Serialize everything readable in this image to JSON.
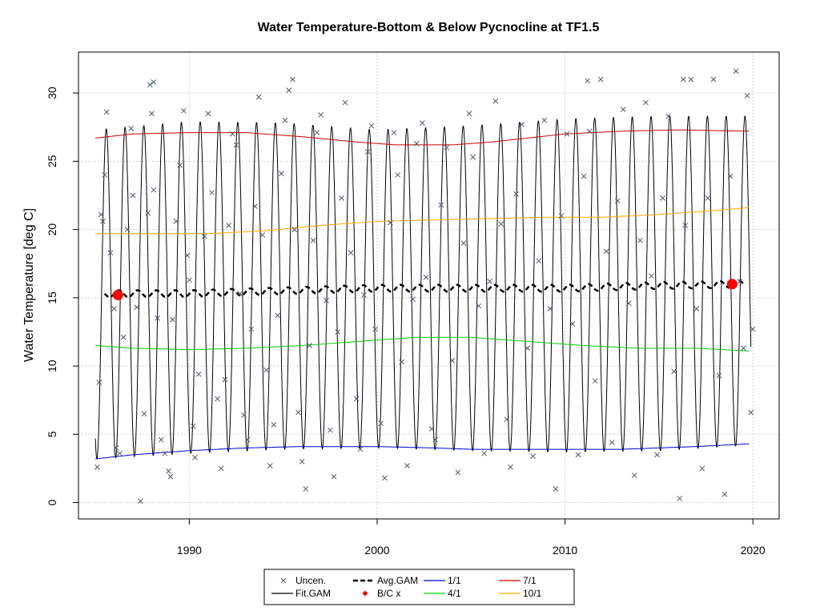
{
  "chart_data": {
    "type": "line",
    "title": "Water Temperature-Bottom & Below Pycnocline at TF1.5",
    "xlabel": "",
    "ylabel": "Water Temperature [deg C]",
    "xlim": [
      1984.1,
      2021.4
    ],
    "ylim": [
      -1.2,
      33.0
    ],
    "x_ticks": [
      1990,
      2000,
      2010,
      2020
    ],
    "x_tick_labels": [
      "1990",
      "2000",
      "2010",
      "2020"
    ],
    "y_ticks": [
      0,
      5,
      10,
      15,
      20,
      25,
      30
    ],
    "y_tick_labels": [
      "0",
      "5",
      "10",
      "15",
      "20",
      "25",
      "30"
    ],
    "grid": true,
    "legend_position": "bottom",
    "legend": [
      {
        "label": "Uncen.",
        "kind": "cross",
        "color": "#4d5a6e"
      },
      {
        "label": "Fit.GAM",
        "kind": "line",
        "color": "#000000"
      },
      {
        "label": "Avg.GAM",
        "kind": "dash",
        "color": "#000000"
      },
      {
        "label": "B/C x",
        "kind": "diamond",
        "color": "#ff0000"
      },
      {
        "label": "1/1",
        "kind": "line",
        "color": "#0000cc"
      },
      {
        "label": "4/1",
        "kind": "line",
        "color": "#00cc00"
      },
      {
        "label": "7/1",
        "kind": "line",
        "color": "#cc0000"
      },
      {
        "label": "10/1",
        "kind": "line",
        "color": "#ffa500"
      }
    ],
    "series": [
      {
        "name": "1/1",
        "color": "#0000cc",
        "x": [
          1985,
          1987,
          1990,
          1993,
          1996,
          2000,
          2003,
          2005,
          2008,
          2010,
          2013,
          2015,
          2017,
          2019.8
        ],
        "y": [
          3.2,
          3.5,
          3.8,
          4.0,
          4.1,
          4.1,
          4.0,
          3.9,
          3.9,
          3.9,
          3.9,
          4.0,
          4.1,
          4.3
        ]
      },
      {
        "name": "4/1",
        "color": "#00cc00",
        "x": [
          1985,
          1987,
          1990,
          1993,
          1996,
          1999,
          2002,
          2005,
          2008,
          2011,
          2014,
          2017,
          2019.8
        ],
        "y": [
          11.5,
          11.3,
          11.2,
          11.3,
          11.5,
          11.8,
          12.1,
          12.1,
          11.8,
          11.5,
          11.3,
          11.3,
          11.1
        ]
      },
      {
        "name": "7/1",
        "color": "#cc0000",
        "x": [
          1985,
          1987,
          1990,
          1993,
          1996,
          1999,
          2001,
          2004,
          2006,
          2008,
          2010,
          2013,
          2016,
          2019.8
        ],
        "y": [
          26.7,
          27.0,
          27.1,
          27.1,
          26.8,
          26.4,
          26.2,
          26.2,
          26.4,
          26.7,
          27.0,
          27.2,
          27.3,
          27.2
        ]
      },
      {
        "name": "10/1",
        "color": "#ffa500",
        "x": [
          1985,
          1988,
          1991,
          1994,
          1997,
          2000,
          2003,
          2006,
          2009,
          2012,
          2015,
          2018,
          2019.8
        ],
        "y": [
          19.7,
          19.7,
          19.7,
          19.9,
          20.3,
          20.6,
          20.7,
          20.8,
          20.9,
          20.9,
          21.1,
          21.4,
          21.6
        ]
      },
      {
        "name": "Avg.GAM",
        "color": "#000000",
        "x": [
          1985.5,
          1990,
          1995,
          2000,
          2005,
          2010,
          2015,
          2019.5
        ],
        "y": [
          15.3,
          15.3,
          15.5,
          15.7,
          15.7,
          15.7,
          15.9,
          16.0
        ],
        "wiggle": 0.25
      },
      {
        "name": "Fit.GAM",
        "color": "#000000",
        "x_start": 1985.0,
        "x_end": 2019.9,
        "phase_peak": 0.58,
        "x_env": [
          1985,
          1990,
          1995,
          2000,
          2005,
          2010,
          2015,
          2019.9
        ],
        "min_env": [
          3.2,
          3.6,
          3.9,
          4.0,
          3.8,
          3.7,
          3.8,
          4.2
        ],
        "max_env": [
          27.3,
          27.9,
          27.8,
          27.3,
          27.6,
          28.1,
          28.3,
          28.3
        ]
      }
    ],
    "bc_points": [
      {
        "x": 1986.2,
        "y": 15.2
      },
      {
        "x": 2018.9,
        "y": 16.0
      }
    ],
    "uncensored_points": [
      [
        1985.1,
        2.6
      ],
      [
        1985.2,
        8.8
      ],
      [
        1985.3,
        21.1
      ],
      [
        1985.4,
        20.6
      ],
      [
        1985.5,
        24.0
      ],
      [
        1985.6,
        28.6
      ],
      [
        1985.8,
        18.3
      ],
      [
        1986.0,
        14.2
      ],
      [
        1986.1,
        4.0
      ],
      [
        1986.3,
        3.6
      ],
      [
        1986.5,
        12.1
      ],
      [
        1986.7,
        20.0
      ],
      [
        1986.9,
        27.4
      ],
      [
        1987.0,
        22.5
      ],
      [
        1987.2,
        14.3
      ],
      [
        1987.4,
        0.1
      ],
      [
        1987.6,
        6.5
      ],
      [
        1987.8,
        21.2
      ],
      [
        1987.9,
        30.6
      ],
      [
        1988.0,
        28.5
      ],
      [
        1988.1,
        22.9
      ],
      [
        1988.3,
        13.5
      ],
      [
        1988.5,
        4.6
      ],
      [
        1988.7,
        3.6
      ],
      [
        1988.9,
        2.3
      ],
      [
        1989.0,
        1.9
      ],
      [
        1989.1,
        13.4
      ],
      [
        1989.3,
        20.6
      ],
      [
        1989.5,
        24.7
      ],
      [
        1989.7,
        28.7
      ],
      [
        1989.9,
        18.1
      ],
      [
        1990.0,
        16.3
      ],
      [
        1990.2,
        5.6
      ],
      [
        1990.3,
        3.3
      ],
      [
        1990.5,
        9.4
      ],
      [
        1990.8,
        19.5
      ],
      [
        1991.0,
        28.5
      ],
      [
        1991.2,
        22.7
      ],
      [
        1991.5,
        7.6
      ],
      [
        1991.7,
        2.5
      ],
      [
        1991.9,
        9.0
      ],
      [
        1992.1,
        20.3
      ],
      [
        1992.3,
        27.0
      ],
      [
        1992.5,
        26.2
      ],
      [
        1992.7,
        15.3
      ],
      [
        1992.9,
        6.4
      ],
      [
        1993.1,
        4.6
      ],
      [
        1993.3,
        12.7
      ],
      [
        1993.5,
        21.7
      ],
      [
        1993.7,
        29.7
      ],
      [
        1993.9,
        19.6
      ],
      [
        1994.1,
        9.7
      ],
      [
        1994.3,
        2.7
      ],
      [
        1994.5,
        5.7
      ],
      [
        1994.7,
        13.7
      ],
      [
        1994.9,
        24.1
      ],
      [
        1995.1,
        28.0
      ],
      [
        1995.3,
        30.2
      ],
      [
        1995.6,
        20.0
      ],
      [
        1995.8,
        6.6
      ],
      [
        1996.0,
        3.0
      ],
      [
        1996.2,
        1.0
      ],
      [
        1996.4,
        11.5
      ],
      [
        1996.6,
        19.2
      ],
      [
        1996.8,
        27.1
      ],
      [
        1997.0,
        28.4
      ],
      [
        1997.3,
        14.8
      ],
      [
        1997.5,
        5.3
      ],
      [
        1997.7,
        1.9
      ],
      [
        1997.9,
        12.5
      ],
      [
        1998.1,
        22.3
      ],
      [
        1998.3,
        29.3
      ],
      [
        1998.6,
        18.3
      ],
      [
        1998.9,
        7.6
      ],
      [
        1999.1,
        3.9
      ],
      [
        1999.3,
        15.2
      ],
      [
        1999.5,
        25.7
      ],
      [
        1999.7,
        27.6
      ],
      [
        1999.9,
        12.7
      ],
      [
        2000.2,
        5.8
      ],
      [
        2000.4,
        1.8
      ],
      [
        2000.7,
        20.5
      ],
      [
        2000.9,
        27.1
      ],
      [
        2001.1,
        24.0
      ],
      [
        2001.3,
        10.3
      ],
      [
        2001.6,
        2.7
      ],
      [
        2001.9,
        14.9
      ],
      [
        2002.1,
        26.3
      ],
      [
        2002.4,
        27.8
      ],
      [
        2002.6,
        16.5
      ],
      [
        2002.9,
        5.4
      ],
      [
        2003.1,
        4.6
      ],
      [
        2003.4,
        21.8
      ],
      [
        2003.7,
        26.0
      ],
      [
        2004.0,
        10.4
      ],
      [
        2004.3,
        2.2
      ],
      [
        2004.6,
        19.0
      ],
      [
        2004.9,
        28.5
      ],
      [
        2005.1,
        25.3
      ],
      [
        2005.4,
        14.4
      ],
      [
        2005.7,
        3.6
      ],
      [
        2006.0,
        16.2
      ],
      [
        2006.3,
        29.4
      ],
      [
        2006.6,
        20.4
      ],
      [
        2006.9,
        6.1
      ],
      [
        2007.1,
        2.6
      ],
      [
        2007.4,
        22.6
      ],
      [
        2007.7,
        27.7
      ],
      [
        2008.0,
        11.3
      ],
      [
        2008.3,
        3.4
      ],
      [
        2008.6,
        17.7
      ],
      [
        2008.9,
        28.0
      ],
      [
        2009.2,
        14.2
      ],
      [
        2009.5,
        1.0
      ],
      [
        2009.8,
        21.0
      ],
      [
        2010.1,
        27.0
      ],
      [
        2010.4,
        13.1
      ],
      [
        2010.7,
        3.5
      ],
      [
        2011.0,
        23.9
      ],
      [
        2011.3,
        27.2
      ],
      [
        2011.6,
        8.9
      ],
      [
        2011.9,
        31.0
      ],
      [
        2012.2,
        18.4
      ],
      [
        2012.5,
        4.4
      ],
      [
        2012.8,
        22.1
      ],
      [
        2013.1,
        28.8
      ],
      [
        2013.4,
        14.6
      ],
      [
        2013.7,
        2.0
      ],
      [
        2014.0,
        19.2
      ],
      [
        2014.3,
        29.3
      ],
      [
        2014.6,
        16.6
      ],
      [
        2014.9,
        3.5
      ],
      [
        2015.2,
        22.3
      ],
      [
        2015.5,
        28.3
      ],
      [
        2015.8,
        9.6
      ],
      [
        2016.1,
        0.3
      ],
      [
        2016.4,
        20.3
      ],
      [
        2016.7,
        31.0
      ],
      [
        2017.0,
        14.2
      ],
      [
        2017.3,
        2.5
      ],
      [
        2017.6,
        22.3
      ],
      [
        2017.9,
        31.0
      ],
      [
        2018.2,
        9.3
      ],
      [
        2018.5,
        0.6
      ],
      [
        2018.8,
        23.9
      ],
      [
        2019.1,
        31.6
      ],
      [
        2019.3,
        16.2
      ],
      [
        2019.5,
        11.3
      ],
      [
        2019.7,
        29.8
      ],
      [
        2019.9,
        6.6
      ],
      [
        2020.0,
        12.7
      ],
      [
        1995.5,
        31.0
      ],
      [
        1988.1,
        30.8
      ],
      [
        2011.2,
        30.9
      ],
      [
        2016.3,
        31.0
      ]
    ]
  }
}
